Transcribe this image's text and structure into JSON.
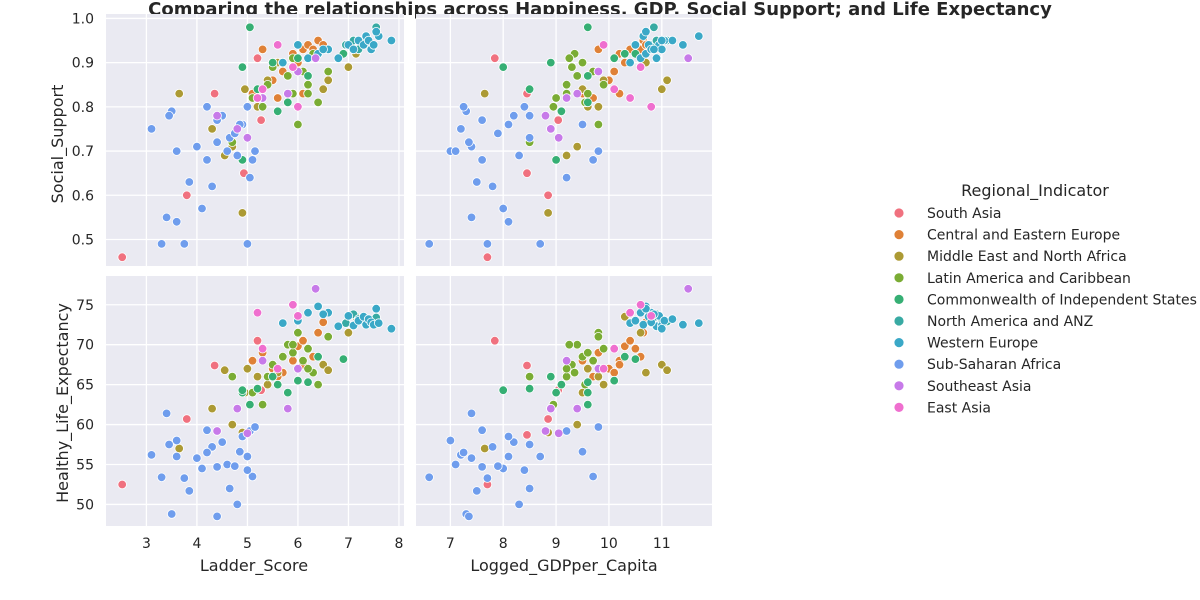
{
  "chart_data": {
    "type": "scatter",
    "title": "Comparing the relationships across Happiness, GDP, Social Support; and Life Expectancy",
    "legend": {
      "title": "Regional_Indicator",
      "placement": "right",
      "entries": [
        {
          "name": "South Asia",
          "color": "#f0717f"
        },
        {
          "name": "Central and Eastern Europe",
          "color": "#df8137"
        },
        {
          "name": "Middle East and North Africa",
          "color": "#ac9a34"
        },
        {
          "name": "Latin America and Caribbean",
          "color": "#7aac34"
        },
        {
          "name": "Commonwealth of Independent States",
          "color": "#36af74"
        },
        {
          "name": "North America and ANZ",
          "color": "#38aaa3"
        },
        {
          "name": "Western Europe",
          "color": "#3aa8c7"
        },
        {
          "name": "Sub-Saharan Africa",
          "color": "#6f9ded"
        },
        {
          "name": "Southeast Asia",
          "color": "#c77ae9"
        },
        {
          "name": "East Asia",
          "color": "#ef6fcf"
        }
      ]
    },
    "grid": true,
    "axes": {
      "x_ladder": {
        "label": "Ladder_Score",
        "range": [
          2.2,
          8.1
        ],
        "ticks": [
          3,
          4,
          5,
          6,
          7,
          8
        ]
      },
      "x_gdp": {
        "label": "Logged_GDPper_Capita",
        "range": [
          6.35,
          11.95
        ],
        "ticks": [
          7,
          8,
          9,
          10,
          11
        ]
      },
      "y_social": {
        "label": "Social_Support",
        "range": [
          0.44,
          1.01
        ],
        "ticks": [
          0.5,
          0.6,
          0.7,
          0.8,
          0.9,
          1.0
        ]
      },
      "y_life": {
        "label": "Healthy_Life_Expectancy",
        "range": [
          47.3,
          78.6
        ],
        "ticks": [
          50,
          55,
          60,
          65,
          70,
          75
        ]
      }
    },
    "points": [
      {
        "region": 0,
        "ladder": 2.52,
        "gdp": 7.7,
        "social": 0.46,
        "life": 52.5
      },
      {
        "region": 0,
        "ladder": 3.8,
        "gdp": 8.85,
        "social": 0.6,
        "life": 60.7
      },
      {
        "region": 0,
        "ladder": 4.35,
        "gdp": 8.45,
        "social": 0.83,
        "life": 67.4
      },
      {
        "region": 0,
        "ladder": 4.93,
        "gdp": 8.45,
        "social": 0.65,
        "life": 58.7
      },
      {
        "region": 0,
        "ladder": 5.27,
        "gdp": 9.04,
        "social": 0.77,
        "life": 64.3
      },
      {
        "region": 0,
        "ladder": 5.2,
        "gdp": 7.84,
        "social": 0.91,
        "life": 70.5
      },
      {
        "region": 1,
        "ladder": 5.1,
        "gdp": 9.5,
        "social": 0.83,
        "life": 68.0
      },
      {
        "region": 1,
        "ladder": 5.3,
        "gdp": 9.8,
        "social": 0.93,
        "life": 69.0
      },
      {
        "region": 1,
        "ladder": 5.5,
        "gdp": 10.0,
        "social": 0.86,
        "life": 67.0
      },
      {
        "region": 1,
        "ladder": 5.7,
        "gdp": 10.1,
        "social": 0.88,
        "life": 66.5
      },
      {
        "region": 1,
        "ladder": 5.9,
        "gdp": 10.2,
        "social": 0.92,
        "life": 68.0
      },
      {
        "region": 1,
        "ladder": 6.0,
        "gdp": 10.3,
        "social": 0.9,
        "life": 69.8
      },
      {
        "region": 1,
        "ladder": 6.1,
        "gdp": 10.4,
        "social": 0.93,
        "life": 70.5
      },
      {
        "region": 1,
        "ladder": 6.2,
        "gdp": 10.5,
        "social": 0.94,
        "life": 69.5
      },
      {
        "region": 1,
        "ladder": 6.3,
        "gdp": 10.6,
        "social": 0.93,
        "life": 68.5
      },
      {
        "region": 1,
        "ladder": 6.4,
        "gdp": 10.65,
        "social": 0.95,
        "life": 71.5
      },
      {
        "region": 1,
        "ladder": 6.5,
        "gdp": 10.7,
        "social": 0.94,
        "life": 72.8
      },
      {
        "region": 1,
        "ladder": 5.6,
        "gdp": 9.7,
        "social": 0.82,
        "life": 66.0
      },
      {
        "region": 1,
        "ladder": 6.1,
        "gdp": 10.2,
        "social": 0.83,
        "life": 67.5
      },
      {
        "region": 2,
        "ladder": 3.65,
        "gdp": 7.65,
        "social": 0.83,
        "life": 57.0
      },
      {
        "region": 2,
        "ladder": 4.3,
        "gdp": 8.9,
        "social": 0.75,
        "life": 62.0
      },
      {
        "region": 2,
        "ladder": 4.55,
        "gdp": 9.2,
        "social": 0.69,
        "life": 66.8
      },
      {
        "region": 2,
        "ladder": 4.7,
        "gdp": 9.4,
        "social": 0.71,
        "life": 60.0
      },
      {
        "region": 2,
        "ladder": 4.9,
        "gdp": 8.85,
        "social": 0.56,
        "life": 59.0
      },
      {
        "region": 2,
        "ladder": 4.95,
        "gdp": 9.5,
        "social": 0.84,
        "life": 64.0
      },
      {
        "region": 2,
        "ladder": 5.0,
        "gdp": 9.6,
        "social": 0.8,
        "life": 67.0
      },
      {
        "region": 2,
        "ladder": 5.2,
        "gdp": 9.8,
        "social": 0.8,
        "life": 66.0
      },
      {
        "region": 2,
        "ladder": 5.4,
        "gdp": 9.9,
        "social": 0.86,
        "life": 65.0
      },
      {
        "region": 2,
        "ladder": 5.6,
        "gdp": 10.7,
        "social": 0.9,
        "life": 66.5
      },
      {
        "region": 2,
        "ladder": 6.5,
        "gdp": 11.0,
        "social": 0.84,
        "life": 67.5
      },
      {
        "region": 2,
        "ladder": 7.0,
        "gdp": 10.6,
        "social": 0.89,
        "life": 71.5
      },
      {
        "region": 2,
        "ladder": 7.15,
        "gdp": 10.3,
        "social": 0.92,
        "life": 73.5
      },
      {
        "region": 2,
        "ladder": 6.6,
        "gdp": 11.1,
        "social": 0.86,
        "life": 66.8
      },
      {
        "region": 3,
        "ladder": 5.1,
        "gdp": 9.0,
        "social": 0.82,
        "life": 64.0
      },
      {
        "region": 3,
        "ladder": 5.4,
        "gdp": 9.2,
        "social": 0.85,
        "life": 66.0
      },
      {
        "region": 3,
        "ladder": 5.5,
        "gdp": 9.3,
        "social": 0.89,
        "life": 67.5
      },
      {
        "region": 3,
        "ladder": 5.7,
        "gdp": 9.5,
        "social": 0.9,
        "life": 68.5
      },
      {
        "region": 3,
        "ladder": 5.8,
        "gdp": 9.4,
        "social": 0.87,
        "life": 70.0
      },
      {
        "region": 3,
        "ladder": 5.9,
        "gdp": 9.6,
        "social": 0.83,
        "life": 69.0
      },
      {
        "region": 3,
        "ladder": 6.0,
        "gdp": 9.8,
        "social": 0.76,
        "life": 71.5
      },
      {
        "region": 3,
        "ladder": 6.1,
        "gdp": 9.7,
        "social": 0.88,
        "life": 68.0
      },
      {
        "region": 3,
        "ladder": 6.2,
        "gdp": 9.9,
        "social": 0.85,
        "life": 69.5
      },
      {
        "region": 3,
        "ladder": 6.3,
        "gdp": 9.35,
        "social": 0.92,
        "life": 66.5
      },
      {
        "region": 3,
        "ladder": 6.4,
        "gdp": 9.55,
        "social": 0.81,
        "life": 65.0
      },
      {
        "region": 3,
        "ladder": 5.3,
        "gdp": 8.95,
        "social": 0.8,
        "life": 62.5
      },
      {
        "region": 3,
        "ladder": 5.9,
        "gdp": 9.25,
        "social": 0.91,
        "life": 70.0
      },
      {
        "region": 3,
        "ladder": 6.6,
        "gdp": 9.8,
        "social": 0.88,
        "life": 71.0
      },
      {
        "region": 3,
        "ladder": 4.7,
        "gdp": 8.5,
        "social": 0.72,
        "life": 66.0
      },
      {
        "region": 3,
        "ladder": 6.2,
        "gdp": 9.2,
        "social": 0.83,
        "life": 67.0
      },
      {
        "region": 4,
        "ladder": 4.9,
        "gdp": 9.0,
        "social": 0.68,
        "life": 64.0
      },
      {
        "region": 4,
        "ladder": 5.05,
        "gdp": 9.6,
        "social": 0.98,
        "life": 62.5
      },
      {
        "region": 4,
        "ladder": 5.2,
        "gdp": 8.5,
        "social": 0.84,
        "life": 64.5
      },
      {
        "region": 4,
        "ladder": 5.5,
        "gdp": 8.9,
        "social": 0.9,
        "life": 66.0
      },
      {
        "region": 4,
        "ladder": 5.8,
        "gdp": 9.6,
        "social": 0.81,
        "life": 64.0
      },
      {
        "region": 4,
        "ladder": 6.0,
        "gdp": 10.1,
        "social": 0.91,
        "life": 65.5
      },
      {
        "region": 4,
        "ladder": 6.2,
        "gdp": 9.6,
        "social": 0.87,
        "life": 65.3
      },
      {
        "region": 4,
        "ladder": 6.4,
        "gdp": 10.3,
        "social": 0.92,
        "life": 68.5
      },
      {
        "region": 4,
        "ladder": 6.9,
        "gdp": 10.5,
        "social": 0.92,
        "life": 68.2
      },
      {
        "region": 4,
        "ladder": 4.9,
        "gdp": 8.0,
        "social": 0.89,
        "life": 64.3
      },
      {
        "region": 4,
        "ladder": 5.6,
        "gdp": 9.1,
        "social": 0.79,
        "life": 65.0
      },
      {
        "region": 5,
        "ladder": 6.95,
        "gdp": 10.8,
        "social": 0.94,
        "life": 72.7
      },
      {
        "region": 5,
        "ladder": 7.1,
        "gdp": 10.9,
        "social": 0.95,
        "life": 73.8
      },
      {
        "region": 5,
        "ladder": 7.2,
        "gdp": 11.0,
        "social": 0.93,
        "life": 73.2
      },
      {
        "region": 5,
        "ladder": 7.3,
        "gdp": 11.1,
        "social": 0.95,
        "life": 72.9
      },
      {
        "region": 5,
        "ladder": 7.55,
        "gdp": 10.85,
        "social": 0.98,
        "life": 73.4
      },
      {
        "region": 6,
        "ladder": 5.7,
        "gdp": 10.4,
        "social": 0.9,
        "life": 72.7
      },
      {
        "region": 6,
        "ladder": 6.0,
        "gdp": 10.5,
        "social": 0.94,
        "life": 73.0
      },
      {
        "region": 6,
        "ladder": 6.2,
        "gdp": 10.6,
        "social": 0.91,
        "life": 74.0
      },
      {
        "region": 6,
        "ladder": 6.4,
        "gdp": 10.7,
        "social": 0.92,
        "life": 74.8
      },
      {
        "region": 6,
        "ladder": 6.6,
        "gdp": 10.8,
        "social": 0.93,
        "life": 74.0
      },
      {
        "region": 6,
        "ladder": 6.8,
        "gdp": 10.9,
        "social": 0.91,
        "life": 72.3
      },
      {
        "region": 6,
        "ladder": 7.0,
        "gdp": 10.95,
        "social": 0.94,
        "life": 73.6
      },
      {
        "region": 6,
        "ladder": 7.1,
        "gdp": 11.0,
        "social": 0.93,
        "life": 72.4
      },
      {
        "region": 6,
        "ladder": 7.2,
        "gdp": 11.05,
        "social": 0.95,
        "life": 73.0
      },
      {
        "region": 6,
        "ladder": 7.3,
        "gdp": 10.75,
        "social": 0.94,
        "life": 73.5
      },
      {
        "region": 6,
        "ladder": 7.35,
        "gdp": 10.65,
        "social": 0.96,
        "life": 72.5
      },
      {
        "region": 6,
        "ladder": 7.4,
        "gdp": 11.2,
        "social": 0.95,
        "life": 73.2
      },
      {
        "region": 6,
        "ladder": 7.45,
        "gdp": 10.8,
        "social": 0.93,
        "life": 72.8
      },
      {
        "region": 6,
        "ladder": 7.5,
        "gdp": 11.4,
        "social": 0.94,
        "life": 72.5
      },
      {
        "region": 6,
        "ladder": 7.6,
        "gdp": 11.7,
        "social": 0.96,
        "life": 72.7
      },
      {
        "region": 6,
        "ladder": 7.85,
        "gdp": 11.0,
        "social": 0.95,
        "life": 72.0
      },
      {
        "region": 6,
        "ladder": 7.55,
        "gdp": 10.7,
        "social": 0.97,
        "life": 74.5
      },
      {
        "region": 6,
        "ladder": 6.5,
        "gdp": 10.85,
        "social": 0.93,
        "life": 73.8
      },
      {
        "region": 7,
        "ladder": 3.1,
        "gdp": 7.2,
        "social": 0.75,
        "life": 56.2
      },
      {
        "region": 7,
        "ladder": 3.4,
        "gdp": 7.4,
        "social": 0.55,
        "life": 61.4
      },
      {
        "region": 7,
        "ladder": 3.5,
        "gdp": 7.3,
        "social": 0.79,
        "life": 48.8
      },
      {
        "region": 7,
        "ladder": 3.6,
        "gdp": 7.0,
        "social": 0.7,
        "life": 58.0
      },
      {
        "region": 7,
        "ladder": 3.75,
        "gdp": 7.7,
        "social": 0.49,
        "life": 53.3
      },
      {
        "region": 7,
        "ladder": 3.85,
        "gdp": 7.5,
        "social": 0.63,
        "life": 51.7
      },
      {
        "region": 7,
        "ladder": 4.0,
        "gdp": 7.4,
        "social": 0.71,
        "life": 55.8
      },
      {
        "region": 7,
        "ladder": 4.1,
        "gdp": 8.0,
        "social": 0.57,
        "life": 54.5
      },
      {
        "region": 7,
        "ladder": 4.2,
        "gdp": 7.6,
        "social": 0.68,
        "life": 59.3
      },
      {
        "region": 7,
        "ladder": 4.3,
        "gdp": 7.8,
        "social": 0.62,
        "life": 57.2
      },
      {
        "region": 7,
        "ladder": 4.4,
        "gdp": 7.35,
        "social": 0.72,
        "life": 48.5
      },
      {
        "region": 7,
        "ladder": 4.5,
        "gdp": 8.2,
        "social": 0.78,
        "life": 57.8
      },
      {
        "region": 7,
        "ladder": 4.6,
        "gdp": 7.1,
        "social": 0.7,
        "life": 55.0
      },
      {
        "region": 7,
        "ladder": 4.65,
        "gdp": 8.5,
        "social": 0.73,
        "life": 52.0
      },
      {
        "region": 7,
        "ladder": 4.75,
        "gdp": 7.9,
        "social": 0.74,
        "life": 54.8
      },
      {
        "region": 7,
        "ladder": 4.8,
        "gdp": 8.3,
        "social": 0.69,
        "life": 50.0
      },
      {
        "region": 7,
        "ladder": 4.9,
        "gdp": 8.1,
        "social": 0.76,
        "life": 58.5
      },
      {
        "region": 7,
        "ladder": 5.0,
        "gdp": 8.7,
        "social": 0.49,
        "life": 56.0
      },
      {
        "region": 7,
        "ladder": 5.05,
        "gdp": 9.2,
        "social": 0.64,
        "life": 59.2
      },
      {
        "region": 7,
        "ladder": 5.1,
        "gdp": 9.7,
        "social": 0.68,
        "life": 53.5
      },
      {
        "region": 7,
        "ladder": 5.15,
        "gdp": 9.8,
        "social": 0.7,
        "life": 59.7
      },
      {
        "region": 7,
        "ladder": 5.0,
        "gdp": 8.4,
        "social": 0.8,
        "life": 54.3
      },
      {
        "region": 7,
        "ladder": 4.2,
        "gdp": 7.25,
        "social": 0.8,
        "life": 56.5
      },
      {
        "region": 7,
        "ladder": 3.3,
        "gdp": 6.6,
        "social": 0.49,
        "life": 53.4
      },
      {
        "region": 7,
        "ladder": 4.4,
        "gdp": 7.6,
        "social": 0.77,
        "life": 54.7
      },
      {
        "region": 7,
        "ladder": 3.6,
        "gdp": 8.1,
        "social": 0.54,
        "life": 56.0
      },
      {
        "region": 7,
        "ladder": 4.85,
        "gdp": 9.5,
        "social": 0.76,
        "life": 56.6
      },
      {
        "region": 7,
        "ladder": 3.45,
        "gdp": 8.5,
        "social": 0.78,
        "life": 57.5
      },
      {
        "region": 8,
        "ladder": 4.4,
        "gdp": 8.8,
        "social": 0.78,
        "life": 59.2
      },
      {
        "region": 8,
        "ladder": 5.0,
        "gdp": 9.05,
        "social": 0.73,
        "life": 58.9
      },
      {
        "region": 8,
        "ladder": 5.3,
        "gdp": 9.2,
        "social": 0.82,
        "life": 68.0
      },
      {
        "region": 8,
        "ladder": 5.8,
        "gdp": 9.4,
        "social": 0.83,
        "life": 62.0
      },
      {
        "region": 8,
        "ladder": 6.0,
        "gdp": 9.8,
        "social": 0.88,
        "life": 67.0
      },
      {
        "region": 8,
        "ladder": 6.35,
        "gdp": 11.5,
        "social": 0.91,
        "life": 77.0
      },
      {
        "region": 8,
        "ladder": 4.8,
        "gdp": 8.9,
        "social": 0.75,
        "life": 62.0
      },
      {
        "region": 9,
        "ladder": 5.2,
        "gdp": 10.4,
        "social": 0.82,
        "life": 74.0
      },
      {
        "region": 9,
        "ladder": 5.6,
        "gdp": 9.9,
        "social": 0.94,
        "life": 67.0
      },
      {
        "region": 9,
        "ladder": 5.9,
        "gdp": 10.6,
        "social": 0.89,
        "life": 75.0
      },
      {
        "region": 9,
        "ladder": 6.0,
        "gdp": 10.8,
        "social": 0.8,
        "life": 73.6
      },
      {
        "region": 9,
        "ladder": 5.3,
        "gdp": 10.1,
        "social": 0.84,
        "life": 69.5
      }
    ]
  }
}
